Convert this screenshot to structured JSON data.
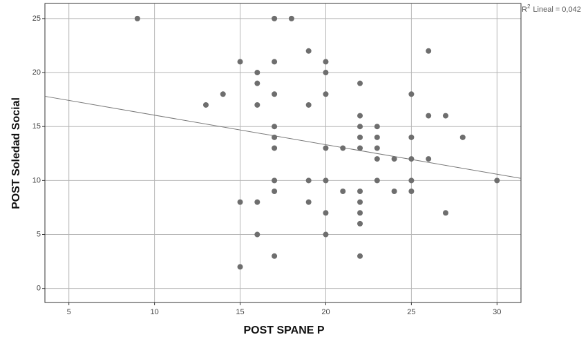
{
  "chart_data": {
    "type": "scatter",
    "x_label": "POST SPANE P",
    "y_label": "POST Soledad Social",
    "annotation": {
      "prefix": "R",
      "sup": "2",
      "text": "Lineal = 0,042"
    },
    "x": [
      9,
      17,
      18,
      19,
      26,
      15,
      17,
      20,
      16,
      20,
      16,
      22,
      14,
      17,
      20,
      25,
      13,
      16,
      19,
      22,
      26,
      27,
      17,
      22,
      23,
      17,
      22,
      23,
      25,
      28,
      17,
      20,
      21,
      22,
      23,
      23,
      24,
      25,
      26,
      17,
      19,
      20,
      23,
      25,
      30,
      17,
      21,
      22,
      24,
      25,
      15,
      16,
      19,
      22,
      20,
      22,
      27,
      22,
      16,
      20,
      17,
      22,
      15
    ],
    "y": [
      25,
      25,
      25,
      22,
      22,
      21,
      21,
      21,
      20,
      20,
      19,
      19,
      18,
      18,
      18,
      18,
      17,
      17,
      17,
      16,
      16,
      16,
      15,
      15,
      15,
      14,
      14,
      14,
      14,
      14,
      13,
      13,
      13,
      13,
      13,
      12,
      12,
      12,
      12,
      10,
      10,
      10,
      10,
      10,
      10,
      9,
      9,
      9,
      9,
      9,
      8,
      8,
      8,
      8,
      7,
      7,
      7,
      6,
      5,
      5,
      3,
      3,
      2
    ],
    "color": "#6e6e6e",
    "fit_line": {
      "x": [
        3.6,
        31.4
      ],
      "y": [
        17.8,
        10.2
      ],
      "color": "#777777"
    },
    "xlim": [
      3.6,
      31.4
    ],
    "ylim": [
      -1.3,
      26.4
    ],
    "xticks": [
      5,
      10,
      15,
      20,
      25,
      30
    ],
    "yticks": [
      0,
      5,
      10,
      15,
      20,
      25
    ],
    "grid": true
  }
}
